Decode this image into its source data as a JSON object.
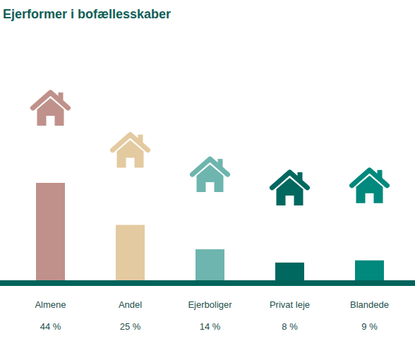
{
  "chart_data": {
    "type": "bar",
    "title": "Ejerformer i bofællesskaber",
    "categories": [
      "Almene",
      "Andel",
      "Ejerboliger",
      "Privat leje",
      "Blandede"
    ],
    "values": [
      44,
      25,
      14,
      8,
      9
    ],
    "value_labels": [
      "44 %",
      "25 %",
      "14 %",
      "8 %",
      "9 %"
    ],
    "colors": [
      "#bf918a",
      "#e3caa0",
      "#6db5ae",
      "#00685f",
      "#00897c"
    ],
    "data_labels": true,
    "tick_labels": false
  }
}
